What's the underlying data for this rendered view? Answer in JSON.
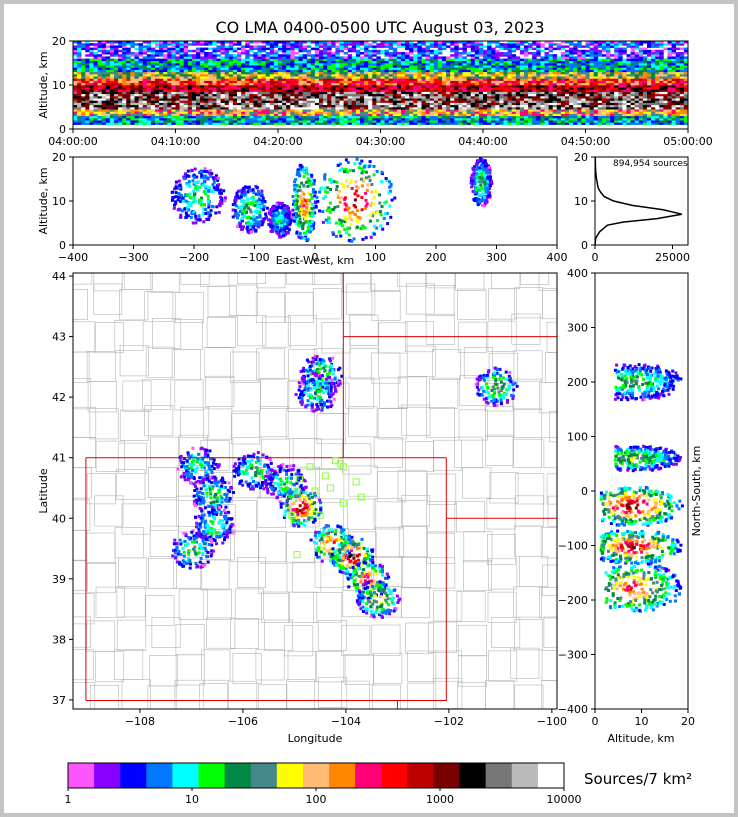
{
  "title": "CO LMA 0400-0500 UTC August 03, 2023",
  "colors": {
    "bins": [
      "#ff55ff",
      "#8800ff",
      "#0000ff",
      "#0077ff",
      "#00ffff",
      "#00ff00",
      "#008844",
      "#448888",
      "#ffff00",
      "#ffbb77",
      "#ff8800",
      "#ff0077",
      "#ff0000",
      "#bb0000",
      "#770000",
      "#000000",
      "#777777",
      "#bbbbbb",
      "#ffffff"
    ],
    "border_state": "#dd0000",
    "border_county": "#b4b4b4",
    "station": "#88ff33"
  },
  "chart_data": [
    {
      "id": "time-height",
      "type": "heatmap",
      "xlabel": "",
      "ylabel": "Altitude, km",
      "xticks": [
        "04:00:00",
        "04:10:00",
        "04:20:00",
        "04:30:00",
        "04:40:00",
        "04:50:00",
        "05:00:00"
      ],
      "yticks": [
        0,
        10,
        20
      ],
      "xlim_minutes": [
        0,
        60
      ],
      "ylim": [
        0,
        20
      ],
      "description_levels": [
        {
          "alt_km": [
            1,
            3
          ],
          "level": "low"
        },
        {
          "alt_km": [
            5,
            8
          ],
          "level": "very high"
        },
        {
          "alt_km": [
            8,
            11
          ],
          "level": "high"
        },
        {
          "alt_km": [
            11,
            20
          ],
          "level": "low"
        }
      ]
    },
    {
      "id": "ew-height",
      "type": "heatmap",
      "xlabel": "East-West, km",
      "ylabel": "Altitude, km",
      "xticks": [
        -400,
        -300,
        -200,
        -100,
        0,
        100,
        200,
        300,
        400
      ],
      "yticks": [
        0,
        10,
        20
      ],
      "xlim": [
        -400,
        400
      ],
      "ylim": [
        0,
        20
      ],
      "cells": [
        {
          "x": [
            -240,
            -150
          ],
          "alt": [
            5,
            18
          ],
          "level": 6
        },
        {
          "x": [
            -140,
            -80
          ],
          "alt": [
            3,
            14
          ],
          "level": 7
        },
        {
          "x": [
            -80,
            -40
          ],
          "alt": [
            2,
            10
          ],
          "level": 5
        },
        {
          "x": [
            -40,
            0
          ],
          "alt": [
            1,
            19
          ],
          "level": 12
        },
        {
          "x": [
            0,
            130
          ],
          "alt": [
            1,
            20
          ],
          "level": 14
        },
        {
          "x": [
            255,
            290
          ],
          "alt": [
            9,
            20
          ],
          "level": 7
        }
      ]
    },
    {
      "id": "alt-histogram",
      "type": "line",
      "annotation": "894,954 sources",
      "xticks": [
        0,
        25000
      ],
      "yticks": [
        0,
        10,
        20
      ],
      "xlim": [
        0,
        30000
      ],
      "ylim": [
        0,
        20
      ],
      "x": [
        0,
        200,
        1500,
        4000,
        9000,
        20000,
        28000,
        22000,
        12000,
        6000,
        3000,
        1800,
        1000,
        500,
        200,
        50
      ],
      "y": [
        0,
        1.5,
        3,
        4.5,
        5.2,
        6,
        7,
        8,
        9,
        10,
        11,
        12,
        13,
        15,
        17,
        20
      ]
    },
    {
      "id": "plan-view",
      "type": "heatmap",
      "xlabel": "Longitude",
      "ylabel": "Latitude",
      "xticks": [
        "−108",
        "−106",
        "−104",
        "−102",
        "−100"
      ],
      "yticks": [
        37,
        38,
        39,
        40,
        41,
        42,
        43,
        44
      ],
      "xlim": [
        -109.3,
        -99.9
      ],
      "ylim": [
        36.85,
        44.05
      ],
      "cells": [
        {
          "lon": -104.5,
          "lat": 42.4,
          "level": 7
        },
        {
          "lon": -104.6,
          "lat": 42.1,
          "level": 6
        },
        {
          "lon": -101.1,
          "lat": 42.2,
          "level": 8
        },
        {
          "lon": -106.9,
          "lat": 40.9,
          "level": 6
        },
        {
          "lon": -106.6,
          "lat": 40.4,
          "level": 7
        },
        {
          "lon": -105.8,
          "lat": 40.8,
          "level": 7
        },
        {
          "lon": -105.2,
          "lat": 40.6,
          "level": 6
        },
        {
          "lon": -104.9,
          "lat": 40.2,
          "level": 15
        },
        {
          "lon": -106.6,
          "lat": 39.9,
          "level": 6
        },
        {
          "lon": -107.0,
          "lat": 39.5,
          "level": 7
        },
        {
          "lon": -104.3,
          "lat": 39.6,
          "level": 13
        },
        {
          "lon": -103.9,
          "lat": 39.4,
          "level": 16
        },
        {
          "lon": -103.6,
          "lat": 39.0,
          "level": 13
        },
        {
          "lon": -103.4,
          "lat": 38.7,
          "level": 10
        }
      ],
      "stations": [
        [
          -104.7,
          40.85
        ],
        [
          -104.05,
          40.85
        ],
        [
          -104.4,
          40.7
        ],
        [
          -104.9,
          40.65
        ],
        [
          -103.8,
          40.6
        ],
        [
          -104.95,
          40.45
        ],
        [
          -104.6,
          40.45
        ],
        [
          -104.3,
          40.5
        ],
        [
          -103.7,
          40.35
        ],
        [
          -104.05,
          40.25
        ],
        [
          -104.5,
          40.05
        ],
        [
          -104.95,
          39.4
        ],
        [
          -104.2,
          40.95
        ],
        [
          -104.1,
          40.9
        ],
        [
          -105.05,
          40.05
        ]
      ]
    },
    {
      "id": "height-ns",
      "type": "heatmap",
      "xlabel": "Altitude, km",
      "ylabel": "North-South, km",
      "xticks": [
        0,
        10,
        20
      ],
      "yticks": [
        400,
        300,
        200,
        100,
        0,
        -100,
        -200,
        -300,
        -400
      ],
      "xlim": [
        0,
        20
      ],
      "ylim": [
        -400,
        400
      ],
      "cells": [
        {
          "ns": [
            170,
            235
          ],
          "alt": [
            4,
            20
          ],
          "level": 7
        },
        {
          "ns": [
            40,
            85
          ],
          "alt": [
            4,
            20
          ],
          "level": 8
        },
        {
          "ns": [
            -60,
            10
          ],
          "alt": [
            1,
            20
          ],
          "level": 15
        },
        {
          "ns": [
            -130,
            -70
          ],
          "alt": [
            1,
            20
          ],
          "level": 14
        },
        {
          "ns": [
            -220,
            -130
          ],
          "alt": [
            2,
            20
          ],
          "level": 12
        }
      ]
    }
  ],
  "colorbar": {
    "label": "Sources/7 km²",
    "ticks": [
      "1",
      "10",
      "100",
      "1000",
      "10000"
    ]
  }
}
